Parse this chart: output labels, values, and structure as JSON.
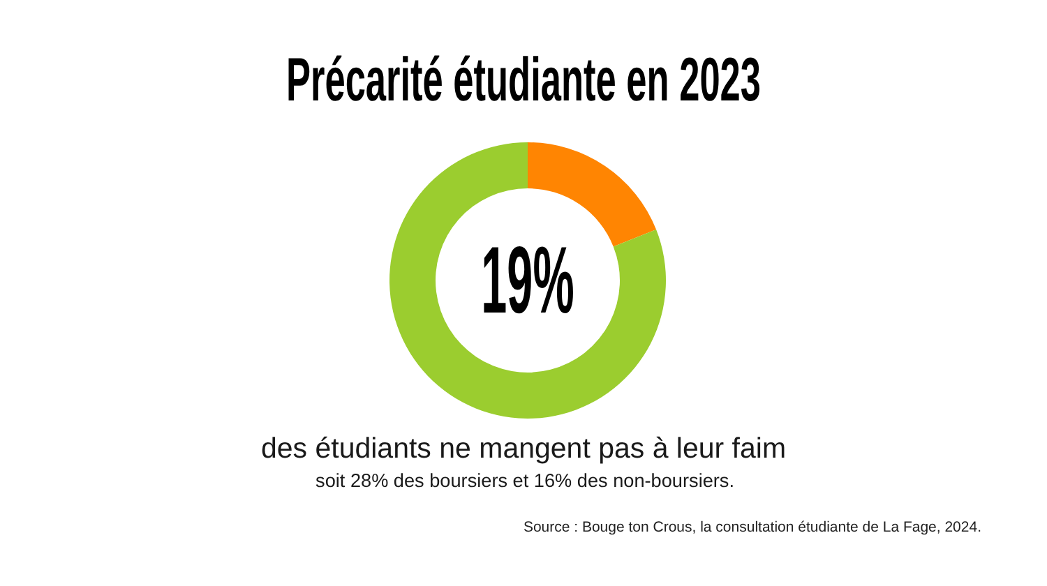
{
  "chart_data": {
    "type": "donut",
    "title": "Précarité étudiante en 2023",
    "categories": [
      null,
      null
    ],
    "values": [
      19,
      81
    ],
    "colors": [
      "#ff8502",
      "#9bcd2f"
    ],
    "annotations": [
      "19%",
      "des étudiants ne mangent pas à leur faim",
      "soit 28% des boursiers et 16% des non-boursiers.",
      "Source : Bouge ton Crous, la consultation étudiante de La Fage, 2024."
    ]
  }
}
